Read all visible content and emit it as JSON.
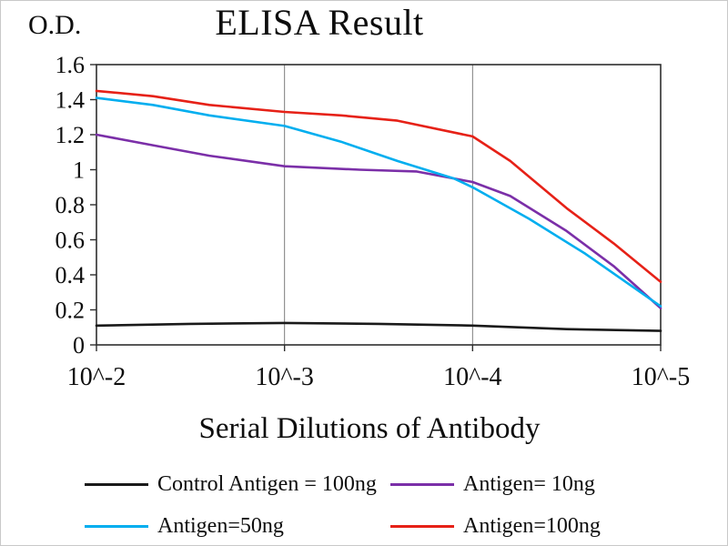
{
  "chart_data": {
    "type": "line",
    "title": "ELISA Result",
    "xlabel": "Serial Dilutions of Antibody",
    "ylabel": "O.D.",
    "x_ticks": [
      "10^-2",
      "10^-3",
      "10^-4",
      "10^-5"
    ],
    "x_unit": "tick_index (0 = 10^-2, 1 = 10^-3, 2 = 10^-4, 3 = 10^-5)",
    "y_ticks": [
      "0",
      "0.2",
      "0.4",
      "0.6",
      "0.8",
      "1",
      "1.2",
      "1.4",
      "1.6"
    ],
    "ylim": [
      0,
      1.6
    ],
    "grid": "vertical gridlines at each x tick, closed plot border",
    "legend_position": "below, 2 columns x 2 rows",
    "series": [
      {
        "name": "Control Antigen = 100ng",
        "color": "#1a1a1a",
        "x": [
          0,
          0.5,
          1,
          1.5,
          2,
          2.5,
          3
        ],
        "values": [
          0.11,
          0.12,
          0.125,
          0.12,
          0.11,
          0.09,
          0.08
        ]
      },
      {
        "name": "Antigen= 10ng",
        "color": "#7b2fa8",
        "x": [
          0,
          0.3,
          0.6,
          1,
          1.4,
          1.7,
          2,
          2.2,
          2.5,
          2.75,
          3
        ],
        "values": [
          1.2,
          1.14,
          1.08,
          1.02,
          1.0,
          0.99,
          0.93,
          0.85,
          0.65,
          0.45,
          0.21
        ]
      },
      {
        "name": "Antigen=50ng",
        "color": "#00aeef",
        "x": [
          0,
          0.3,
          0.6,
          1,
          1.3,
          1.6,
          1.9,
          2,
          2.3,
          2.6,
          3
        ],
        "values": [
          1.41,
          1.37,
          1.31,
          1.25,
          1.16,
          1.05,
          0.95,
          0.9,
          0.72,
          0.52,
          0.22
        ]
      },
      {
        "name": "Antigen=100ng",
        "color": "#e62117",
        "x": [
          0,
          0.3,
          0.6,
          1,
          1.3,
          1.6,
          2,
          2.2,
          2.5,
          2.75,
          3
        ],
        "values": [
          1.45,
          1.42,
          1.37,
          1.33,
          1.31,
          1.28,
          1.19,
          1.05,
          0.78,
          0.58,
          0.36
        ]
      }
    ]
  }
}
